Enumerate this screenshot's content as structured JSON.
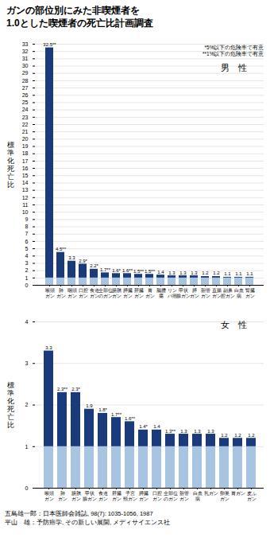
{
  "title": "ガンの部位別にみた非喫煙者を\n1.0とした喫煙者の死亡比計画調査",
  "source": [
    "五島雄一郎：日本医師会雑誌, 98(7): 1035-1056, 1987",
    "平山　雄：予防癌学, その新しい展開, メディサイエンス社"
  ],
  "chart_data": [
    {
      "type": "bar",
      "title": "男　性",
      "annotations": [
        "*5%以下の危険率で有意",
        "**1%以下の危険率で有意"
      ],
      "categories": [
        "喉頭\nガン",
        "肺\nガン",
        "咽頭\nガン",
        "口腔\nガン",
        "食道\nガン",
        "全部位\nのガン",
        "膀胱\nガン",
        "膵臓\nガン",
        "肝臓\nガン",
        "胃\nガン",
        "脳腫\n瘍",
        "リン\nパ癌",
        "甲状\n腺ガン",
        "膵\nガン",
        "胆管\nガン",
        "直腸\nガン",
        "副鼻\n腔ガン",
        "白血\n病",
        "腎臓\nガン"
      ],
      "values": [
        32.5,
        4.5,
        3.3,
        2.9,
        2.2,
        1.7,
        1.6,
        1.6,
        1.5,
        1.5,
        1.4,
        1.3,
        1.3,
        1.3,
        1.2,
        1.2,
        1.1,
        1.1,
        1.1
      ],
      "value_labels": [
        "32.5**",
        "4.5**",
        "3.3",
        "2.9*",
        "2.2*",
        "1.7**",
        "1.6*",
        "1.6**",
        "1.5**",
        "1.5**",
        "1.4",
        "1.3",
        "1.3",
        "1.3",
        "1.2",
        "1.2",
        "1.1",
        "1.1",
        "1.1"
      ],
      "data_labels": true,
      "color": "#1a3a7c",
      "baseline_value": 1.0,
      "baseline_color": "#a8c4e0",
      "ylabel": "標\n準\n化\n死\n亡\n比",
      "ylim": [
        0,
        33
      ],
      "yticks": [
        0,
        1,
        2,
        3,
        4,
        5,
        6,
        7,
        8,
        9,
        10,
        11,
        12,
        13,
        14,
        15,
        16,
        17,
        18,
        19,
        20,
        21,
        22,
        23,
        24,
        25,
        26,
        27,
        28,
        29,
        30,
        31,
        32,
        33
      ],
      "grid": true
    },
    {
      "type": "bar",
      "title": "女　性",
      "categories": [
        "喉頭\nガン",
        "肺\nガン",
        "膀胱\nガン",
        "甲状\n腺ガン",
        "食道\nガン",
        "肝臓\nガン",
        "子宮\n頸ガン",
        "膵臓\nガン",
        "口腔\nガン",
        "全部位\nのガン",
        "胆管\nガン",
        "白血\n病",
        "乳ガン",
        "卵巣\nガン",
        "胃ガン",
        "皮ふ\nガン"
      ],
      "values": [
        3.3,
        2.3,
        2.3,
        1.9,
        1.8,
        1.7,
        1.6,
        1.4,
        1.4,
        1.3,
        1.3,
        1.3,
        1.3,
        1.2,
        1.2,
        1.2
      ],
      "value_labels": [
        "3.3",
        "2.3**",
        "2.3*",
        "1.9",
        "1.8*",
        "1.7**",
        "1.6**",
        "1.4*",
        "1.4",
        "1.3**",
        "1.3",
        "1.3",
        "1.3",
        "1.2",
        "1.2",
        "1.2"
      ],
      "data_labels": true,
      "color": "#1a3a7c",
      "baseline_value": 1.0,
      "baseline_color": "#a8c4e0",
      "ylabel": "標\n準\n化\n死\n亡\n比",
      "ylim": [
        0,
        4
      ],
      "yticks": [
        0,
        1,
        2,
        3,
        4
      ],
      "grid": true
    }
  ]
}
